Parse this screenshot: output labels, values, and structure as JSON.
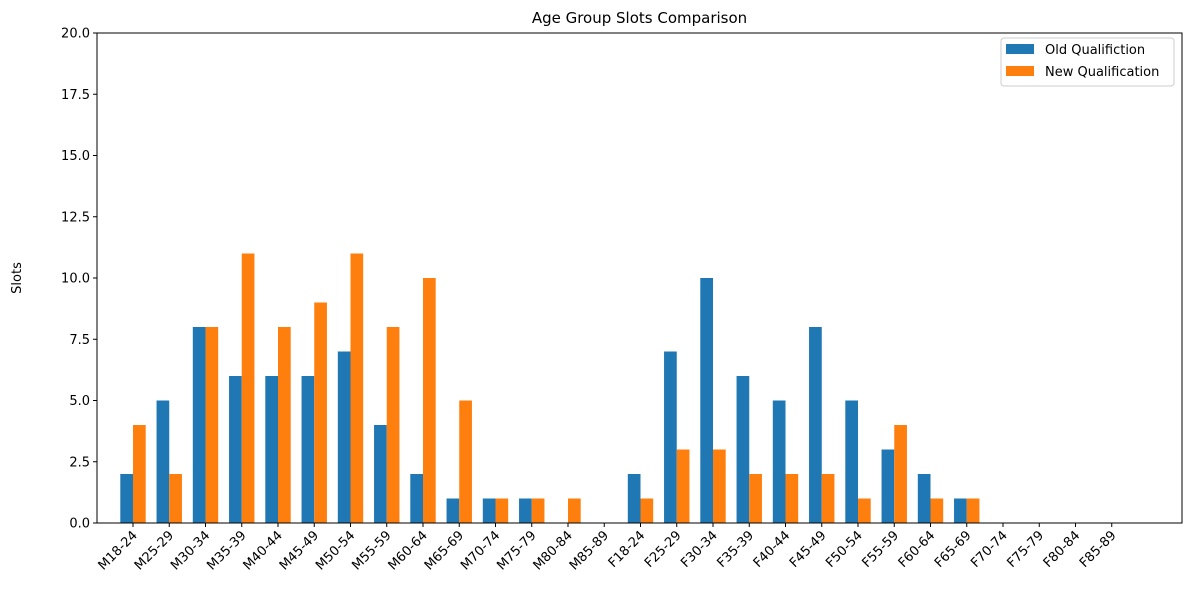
{
  "chart_data": {
    "type": "bar",
    "title": "Age Group Slots Comparison",
    "xlabel": "",
    "ylabel": "Slots",
    "ylim": [
      0,
      20
    ],
    "yticks": [
      0.0,
      2.5,
      5.0,
      7.5,
      10.0,
      12.5,
      15.0,
      17.5,
      20.0
    ],
    "ytick_labels": [
      "0.0",
      "2.5",
      "5.0",
      "7.5",
      "10.0",
      "12.5",
      "15.0",
      "17.5",
      "20.0"
    ],
    "grid": false,
    "legend_position": "top-right",
    "categories": [
      "M18-24",
      "M25-29",
      "M30-34",
      "M35-39",
      "M40-44",
      "M45-49",
      "M50-54",
      "M55-59",
      "M60-64",
      "M65-69",
      "M70-74",
      "M75-79",
      "M80-84",
      "M85-89",
      "F18-24",
      "F25-29",
      "F30-34",
      "F35-39",
      "F40-44",
      "F45-49",
      "F50-54",
      "F55-59",
      "F60-64",
      "F65-69",
      "F70-74",
      "F75-79",
      "F80-84",
      "F85-89"
    ],
    "series": [
      {
        "name": "Old Qualifiction",
        "color": "#1f77b4",
        "values": [
          2,
          5,
          8,
          6,
          6,
          6,
          7,
          4,
          2,
          1,
          1,
          1,
          0,
          0,
          2,
          7,
          10,
          6,
          5,
          8,
          5,
          3,
          2,
          1,
          0,
          0,
          0,
          0
        ]
      },
      {
        "name": "New Qualification",
        "color": "#ff7f0e",
        "values": [
          4,
          2,
          8,
          11,
          8,
          9,
          11,
          8,
          10,
          5,
          1,
          1,
          1,
          0,
          1,
          3,
          3,
          2,
          2,
          2,
          1,
          4,
          1,
          1,
          0,
          0,
          0,
          0
        ]
      }
    ]
  }
}
